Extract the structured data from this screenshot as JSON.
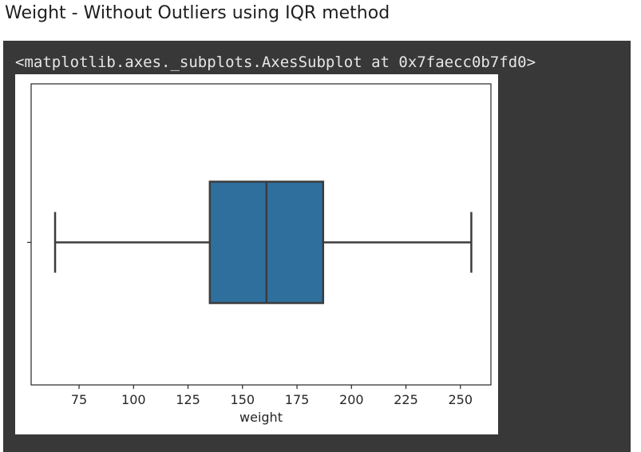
{
  "heading": "Weight - Without Outliers using IQR method",
  "output": {
    "repr_text": "<matplotlib.axes._subplots.AxesSubplot at 0x7faecc0b7fd0>"
  },
  "colors": {
    "box_fill": "#2f6f9e",
    "line": "#3c3c3c",
    "panel": "#383838"
  },
  "chart_data": {
    "type": "box",
    "orientation": "horizontal",
    "xlabel": "weight",
    "xlim": [
      53,
      264
    ],
    "xticks": [
      75,
      100,
      125,
      150,
      175,
      200,
      225,
      250
    ],
    "tick_labels": [
      "75",
      "100",
      "125",
      "150",
      "175",
      "200",
      "225",
      "250"
    ],
    "box": {
      "whisker_low": 64,
      "q1": 135,
      "median": 161,
      "q3": 187,
      "whisker_high": 255
    }
  }
}
